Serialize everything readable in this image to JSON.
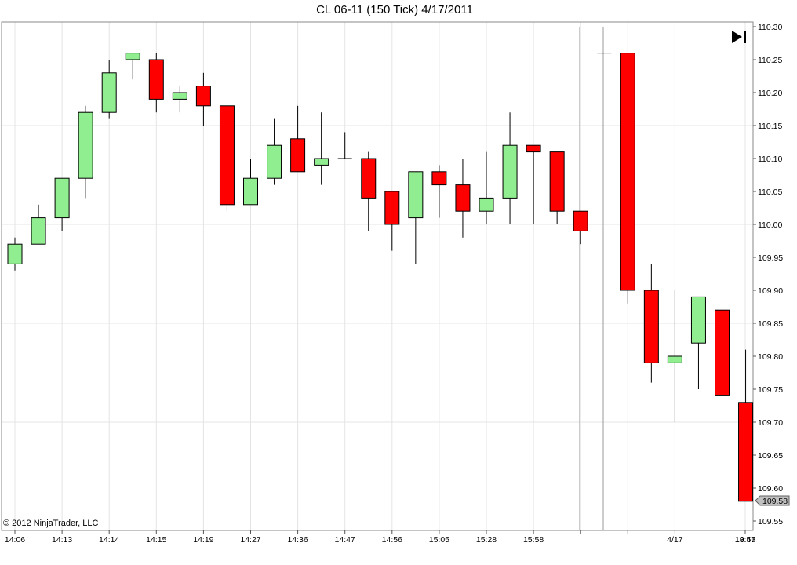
{
  "chart_data": {
    "type": "candlestick",
    "title": "CL 06-11 (150 Tick)  4/17/2011",
    "copyright": "© 2012 NinjaTrader, LLC",
    "last_price_label": "109.58",
    "ylim": [
      109.55,
      110.3
    ],
    "y_ticks": [
      "110.30",
      "110.25",
      "110.20",
      "110.15",
      "110.10",
      "110.05",
      "110.00",
      "109.95",
      "109.90",
      "109.85",
      "109.80",
      "109.75",
      "109.70",
      "109.65",
      "109.60",
      "109.55"
    ],
    "x_tick_labels": [
      "14:06",
      "14:13",
      "14:14",
      "14:15",
      "14:19",
      "14:27",
      "14:36",
      "14:47",
      "14:56",
      "15:05",
      "15:28",
      "15:58",
      "",
      "",
      "4/17",
      "",
      "18:45",
      "19:57"
    ],
    "colors": {
      "up": "#90ee90",
      "down": "#ff0000",
      "outline": "#000000",
      "grid": "#e4e4e4"
    },
    "candles": [
      {
        "o": 109.94,
        "h": 109.98,
        "l": 109.93,
        "c": 109.97
      },
      {
        "o": 109.97,
        "h": 110.03,
        "l": 109.97,
        "c": 110.01
      },
      {
        "o": 110.01,
        "h": 110.07,
        "l": 109.99,
        "c": 110.07
      },
      {
        "o": 110.07,
        "h": 110.18,
        "l": 110.04,
        "c": 110.17
      },
      {
        "o": 110.17,
        "h": 110.25,
        "l": 110.16,
        "c": 110.23
      },
      {
        "o": 110.25,
        "h": 110.26,
        "l": 110.22,
        "c": 110.26
      },
      {
        "o": 110.25,
        "h": 110.26,
        "l": 110.17,
        "c": 110.19
      },
      {
        "o": 110.19,
        "h": 110.21,
        "l": 110.17,
        "c": 110.2
      },
      {
        "o": 110.21,
        "h": 110.23,
        "l": 110.15,
        "c": 110.18
      },
      {
        "o": 110.18,
        "h": 110.18,
        "l": 110.02,
        "c": 110.03
      },
      {
        "o": 110.03,
        "h": 110.1,
        "l": 110.03,
        "c": 110.07
      },
      {
        "o": 110.07,
        "h": 110.16,
        "l": 110.06,
        "c": 110.12
      },
      {
        "o": 110.13,
        "h": 110.18,
        "l": 110.08,
        "c": 110.08
      },
      {
        "o": 110.09,
        "h": 110.17,
        "l": 110.06,
        "c": 110.1
      },
      {
        "o": 110.1,
        "h": 110.14,
        "l": 110.1,
        "c": 110.1
      },
      {
        "o": 110.1,
        "h": 110.11,
        "l": 109.99,
        "c": 110.04
      },
      {
        "o": 110.05,
        "h": 110.05,
        "l": 109.96,
        "c": 110.0
      },
      {
        "o": 110.01,
        "h": 110.08,
        "l": 109.94,
        "c": 110.08
      },
      {
        "o": 110.08,
        "h": 110.09,
        "l": 110.01,
        "c": 110.06
      },
      {
        "o": 110.06,
        "h": 110.1,
        "l": 109.98,
        "c": 110.02
      },
      {
        "o": 110.02,
        "h": 110.11,
        "l": 110.0,
        "c": 110.04
      },
      {
        "o": 110.04,
        "h": 110.17,
        "l": 110.0,
        "c": 110.12
      },
      {
        "o": 110.12,
        "h": 110.12,
        "l": 110.0,
        "c": 110.11
      },
      {
        "o": 110.11,
        "h": 110.11,
        "l": 110.0,
        "c": 110.02
      },
      {
        "o": 110.02,
        "h": 110.02,
        "l": 109.97,
        "c": 109.99
      },
      {
        "o": 110.26,
        "h": 110.26,
        "l": 110.26,
        "c": 110.26
      },
      {
        "o": 110.26,
        "h": 110.26,
        "l": 109.88,
        "c": 109.9
      },
      {
        "o": 109.9,
        "h": 109.94,
        "l": 109.76,
        "c": 109.79
      },
      {
        "o": 109.79,
        "h": 109.9,
        "l": 109.7,
        "c": 109.8
      },
      {
        "o": 109.82,
        "h": 109.89,
        "l": 109.75,
        "c": 109.89
      },
      {
        "o": 109.87,
        "h": 109.92,
        "l": 109.72,
        "c": 109.74
      },
      {
        "o": 109.73,
        "h": 109.81,
        "l": 109.58,
        "c": 109.58
      }
    ]
  },
  "toolbar": {
    "icon": "skip-to-end-icon"
  }
}
